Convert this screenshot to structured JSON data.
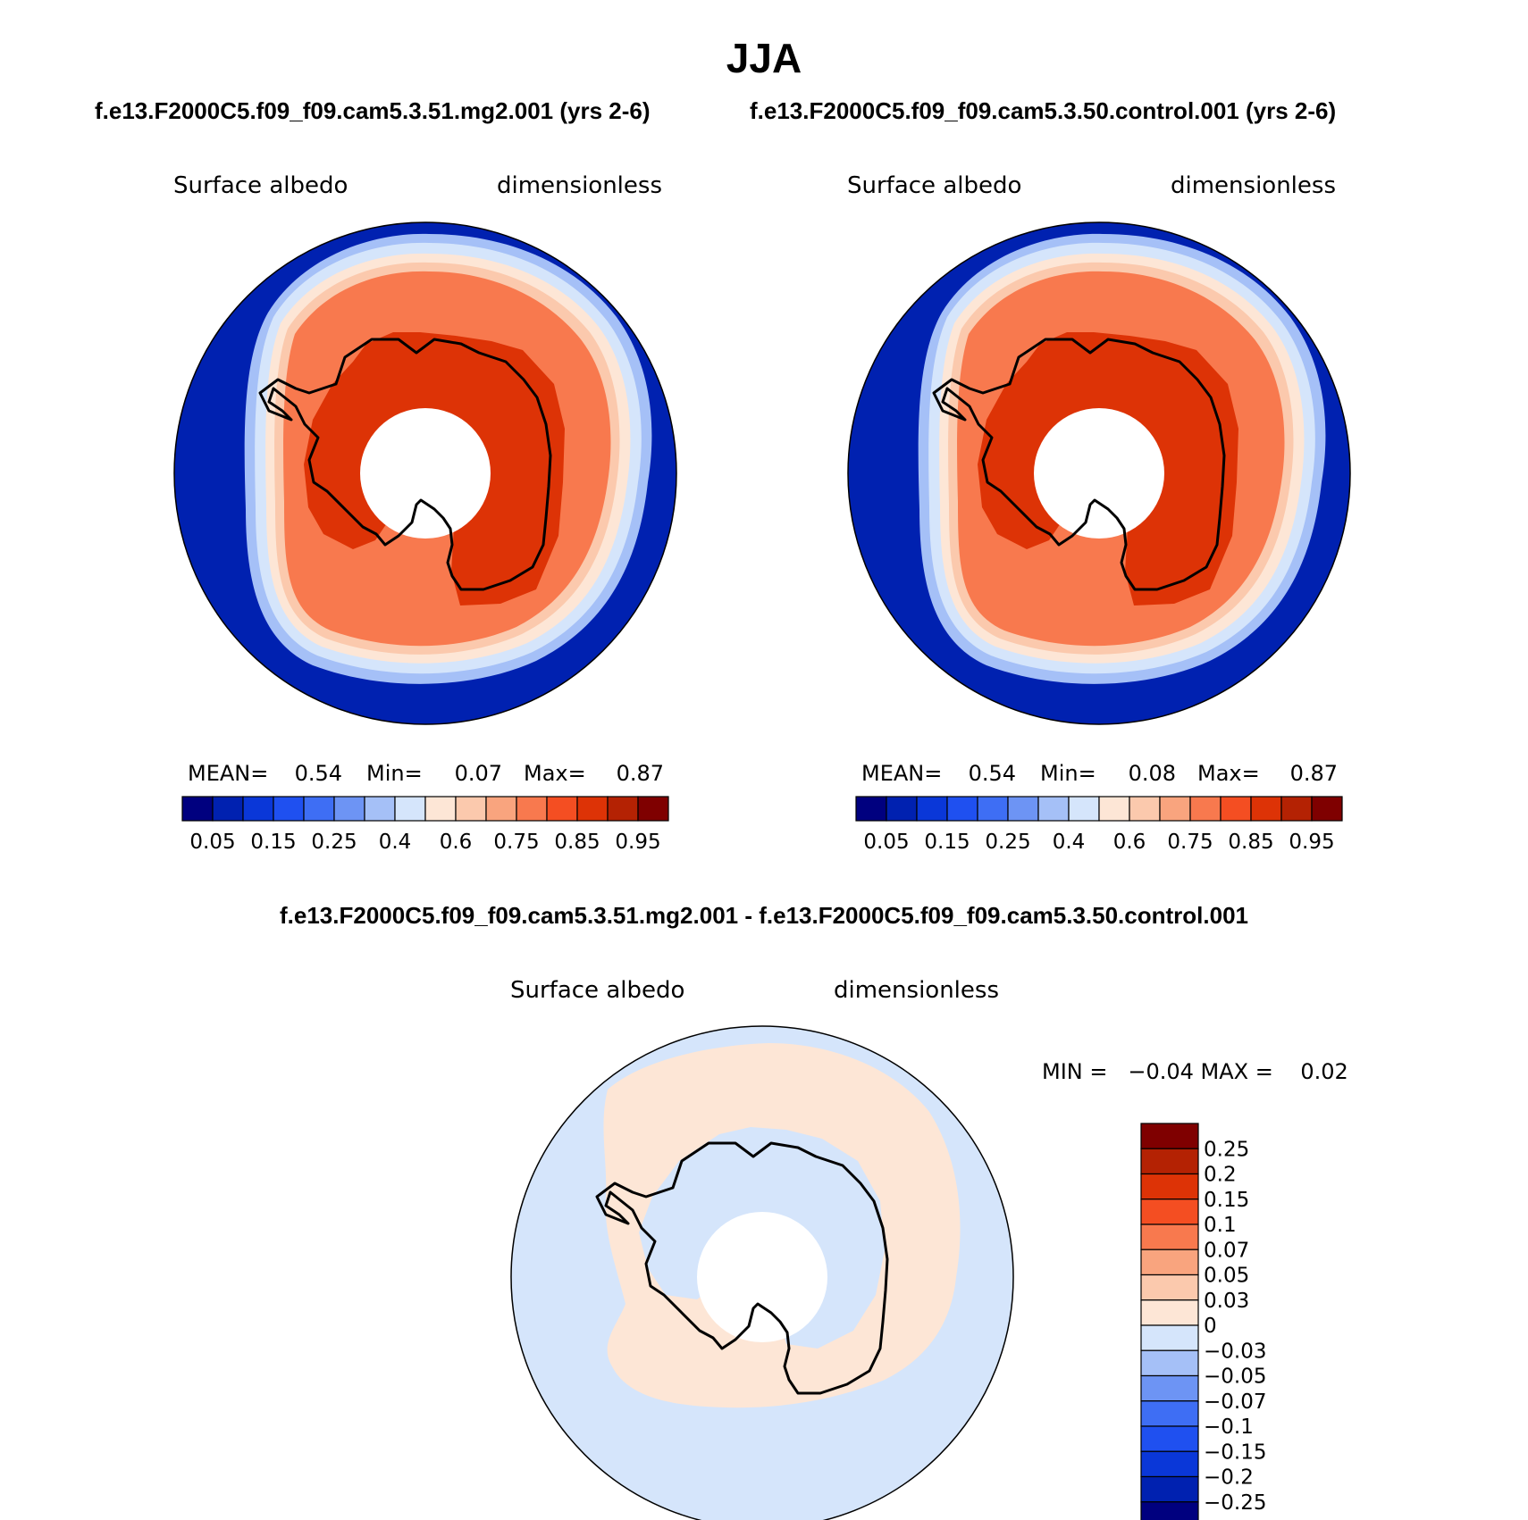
{
  "title": "JJA",
  "panels": [
    {
      "header": "f.e13.F2000C5.f09_f09.cam5.3.51.mg2.001 (yrs 2-6)",
      "variable": "Surface albedo",
      "units": "dimensionless",
      "stats": {
        "mean_label": "MEAN=",
        "mean": "0.54",
        "min_label": "Min=",
        "min": "0.07",
        "max_label": "Max=",
        "max": "0.87"
      }
    },
    {
      "header": "f.e13.F2000C5.f09_f09.cam5.3.50.control.001 (yrs 2-6)",
      "variable": "Surface albedo",
      "units": "dimensionless",
      "stats": {
        "mean_label": "MEAN=",
        "mean": "0.54",
        "min_label": "Min=",
        "min": "0.08",
        "max_label": "Max=",
        "max": "0.87"
      }
    }
  ],
  "diff_panel": {
    "header": "f.e13.F2000C5.f09_f09.cam5.3.51.mg2.001 - f.e13.F2000C5.f09_f09.cam5.3.50.control.001",
    "variable": "Surface albedo",
    "units": "dimensionless",
    "minmax_text": "MIN =   −0.04 MAX =    0.02"
  },
  "colorbar_top": {
    "colors": [
      "#00007f",
      "#0021b0",
      "#0a37d8",
      "#1f50f0",
      "#3e6ef4",
      "#6d94f4",
      "#a5c0f7",
      "#d5e5fb",
      "#fde6d6",
      "#fbc9ad",
      "#f9a47e",
      "#f8794e",
      "#f44e22",
      "#dd3306",
      "#b42203",
      "#7f0000"
    ],
    "labels": [
      "0.05",
      "0.15",
      "0.25",
      "0.4",
      "0.6",
      "0.75",
      "0.85",
      "0.95"
    ]
  },
  "colorbar_diff": {
    "colors": [
      "#7f0000",
      "#b42203",
      "#dd3306",
      "#f44e22",
      "#f8794e",
      "#f9a47e",
      "#fbc9ad",
      "#fde6d6",
      "#d5e5fb",
      "#a5c0f7",
      "#6d94f4",
      "#3e6ef4",
      "#1f50f0",
      "#0a37d8",
      "#0021b0",
      "#00007f"
    ],
    "labels": [
      "0.25",
      "0.2",
      "0.15",
      "0.1",
      "0.07",
      "0.05",
      "0.03",
      "0",
      "−0.03",
      "−0.05",
      "−0.07",
      "−0.1",
      "−0.15",
      "−0.2",
      "−0.25"
    ]
  },
  "map_colors": {
    "ocean": "#0021b0",
    "ice_outer": "#f44e22",
    "ice_inner": "#dd3306",
    "diff_background": "#d5e5fb",
    "diff_positive": "#fde6d6",
    "pole_hole": "#ffffff",
    "coast": "#000000"
  }
}
